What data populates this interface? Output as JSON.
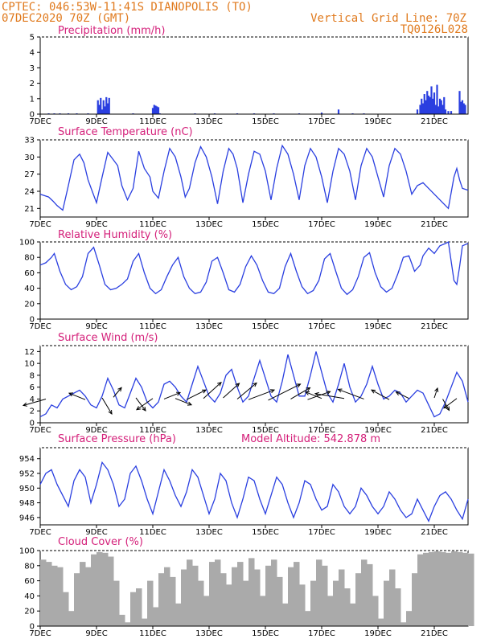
{
  "header": {
    "line1_left": "CPTEC:   046:53W-11:41S   DIANOPOLIS (TO)",
    "line2_left": "07DEC2020 70Z (GMT)",
    "line1_right": "Vertical Grid Line: 70Z",
    "line2_right": "TQ0126L028"
  },
  "colors": {
    "header": "#e07a1e",
    "title": "#d4207a",
    "series": "#2a3fe0",
    "cloud": "#aaaaaa"
  },
  "x_ticks": [
    "7DEC",
    "9DEC",
    "11DEC",
    "13DEC",
    "15DEC",
    "17DEC",
    "19DEC",
    "21DEC"
  ],
  "chart_data": [
    {
      "type": "bar",
      "title": "Precipitation (mm/h)",
      "ylim": [
        0,
        5
      ],
      "yticks": [
        0,
        1,
        2,
        3,
        4,
        5
      ],
      "x_range_days": [
        7,
        22.2
      ],
      "x": [
        7.3,
        7.5,
        7.7,
        8.0,
        8.3,
        8.7,
        9.05,
        9.1,
        9.15,
        9.2,
        9.25,
        9.3,
        9.35,
        9.4,
        9.45,
        10.3,
        11.0,
        11.05,
        11.1,
        11.15,
        11.2,
        11.25,
        12.5,
        13.2,
        14.0,
        14.6,
        15.3,
        16.2,
        17.0,
        17.6,
        18.1,
        18.5,
        20.4,
        20.5,
        20.55,
        20.6,
        20.65,
        20.7,
        20.75,
        20.8,
        20.85,
        20.9,
        20.95,
        21.0,
        21.05,
        21.1,
        21.15,
        21.2,
        21.25,
        21.3,
        21.35,
        21.4,
        21.5,
        21.6,
        21.9,
        21.95,
        22.0,
        22.05,
        22.1
      ],
      "values": [
        0.05,
        0.05,
        0.05,
        0.05,
        0.05,
        0.05,
        0.9,
        0.6,
        1.05,
        0.3,
        0.9,
        0.5,
        1.1,
        0.7,
        1.05,
        0.05,
        0.4,
        0.6,
        0.55,
        0.5,
        0.45,
        0.05,
        0.05,
        0.05,
        0.05,
        0.05,
        0.05,
        0.05,
        0.1,
        0.3,
        0.05,
        0.05,
        0.3,
        0.6,
        1.0,
        0.7,
        1.3,
        0.9,
        1.5,
        1.2,
        1.1,
        1.8,
        1.0,
        1.4,
        0.6,
        1.9,
        0.5,
        1.0,
        0.9,
        0.6,
        1.1,
        0.3,
        0.2,
        0.2,
        1.5,
        0.8,
        0.9,
        0.7,
        0.6
      ]
    },
    {
      "type": "line",
      "title": "Surface Temperature (nC)",
      "ylim": [
        19.5,
        33
      ],
      "yticks": [
        21,
        24,
        27,
        30,
        33
      ],
      "x_range_days": [
        7,
        22.2
      ],
      "x": [
        7.0,
        7.3,
        7.45,
        7.6,
        7.8,
        8.0,
        8.2,
        8.4,
        8.55,
        8.7,
        8.85,
        9.0,
        9.2,
        9.4,
        9.6,
        9.75,
        9.9,
        10.1,
        10.3,
        10.5,
        10.7,
        10.9,
        11.0,
        11.2,
        11.4,
        11.6,
        11.8,
        12.0,
        12.15,
        12.3,
        12.5,
        12.7,
        12.9,
        13.1,
        13.3,
        13.5,
        13.7,
        13.85,
        14.0,
        14.2,
        14.4,
        14.6,
        14.8,
        15.0,
        15.2,
        15.4,
        15.6,
        15.8,
        16.0,
        16.2,
        16.4,
        16.6,
        16.8,
        17.0,
        17.2,
        17.4,
        17.6,
        17.8,
        18.0,
        18.2,
        18.4,
        18.6,
        18.8,
        19.0,
        19.2,
        19.4,
        19.6,
        19.8,
        20.0,
        20.2,
        20.4,
        20.6,
        20.8,
        21.0,
        21.2,
        21.4,
        21.5,
        21.7,
        21.8,
        21.9,
        22.0,
        22.2
      ],
      "series": [
        {
          "values": [
            23.5,
            23.0,
            22.3,
            21.5,
            20.7,
            25.0,
            29.5,
            30.5,
            29.0,
            26.0,
            24.0,
            22.0,
            26.5,
            30.8,
            29.5,
            28.5,
            25.0,
            22.5,
            24.5,
            31.0,
            28.0,
            26.5,
            24.0,
            22.8,
            27.5,
            31.5,
            30.0,
            26.5,
            23.0,
            24.5,
            29.0,
            31.8,
            30.0,
            26.5,
            21.8,
            27.5,
            31.5,
            30.5,
            28.0,
            22.0,
            27.0,
            31.0,
            30.5,
            27.5,
            22.5,
            28.0,
            32.0,
            30.5,
            27.0,
            22.5,
            28.5,
            31.5,
            30.0,
            26.5,
            22.0,
            27.5,
            31.5,
            30.5,
            27.5,
            22.5,
            28.5,
            31.5,
            30.0,
            26.5,
            23.0,
            28.5,
            31.5,
            30.5,
            27.5,
            23.5,
            25.0,
            25.5,
            24.5,
            23.5,
            22.5,
            21.5,
            21.0,
            26.5,
            28.0,
            26.0,
            24.5,
            24.2
          ]
        }
      ]
    },
    {
      "type": "line",
      "title": "Relative Humidity (%)",
      "ylim": [
        0,
        100
      ],
      "yticks": [
        0,
        20,
        40,
        60,
        80,
        100
      ],
      "x_range_days": [
        7,
        22.2
      ],
      "x": [
        7.0,
        7.2,
        7.4,
        7.5,
        7.7,
        7.9,
        8.1,
        8.3,
        8.5,
        8.7,
        8.9,
        9.1,
        9.3,
        9.5,
        9.7,
        9.9,
        10.1,
        10.3,
        10.5,
        10.7,
        10.9,
        11.1,
        11.3,
        11.5,
        11.7,
        11.9,
        12.1,
        12.3,
        12.5,
        12.7,
        12.9,
        13.1,
        13.3,
        13.5,
        13.7,
        13.9,
        14.1,
        14.3,
        14.5,
        14.7,
        14.9,
        15.1,
        15.3,
        15.5,
        15.7,
        15.9,
        16.1,
        16.3,
        16.5,
        16.7,
        16.9,
        17.1,
        17.3,
        17.5,
        17.7,
        17.9,
        18.1,
        18.3,
        18.5,
        18.7,
        18.9,
        19.1,
        19.3,
        19.5,
        19.7,
        19.9,
        20.1,
        20.3,
        20.5,
        20.6,
        20.8,
        21.0,
        21.2,
        21.4,
        21.5,
        21.7,
        21.8,
        21.9,
        22.0,
        22.2
      ],
      "series": [
        {
          "values": [
            70,
            73,
            80,
            85,
            62,
            45,
            38,
            42,
            55,
            85,
            93,
            70,
            45,
            38,
            40,
            45,
            52,
            75,
            85,
            60,
            40,
            33,
            38,
            55,
            70,
            80,
            55,
            40,
            33,
            35,
            48,
            75,
            80,
            60,
            38,
            35,
            45,
            68,
            82,
            70,
            50,
            35,
            33,
            40,
            68,
            85,
            62,
            42,
            33,
            37,
            50,
            78,
            85,
            62,
            40,
            32,
            38,
            55,
            80,
            86,
            60,
            42,
            35,
            40,
            58,
            80,
            82,
            62,
            70,
            82,
            92,
            85,
            95,
            98,
            100,
            50,
            45,
            68,
            95,
            98
          ]
        }
      ]
    },
    {
      "type": "line",
      "title": "Surface Wind (m/s)",
      "ylim": [
        0,
        13
      ],
      "yticks": [
        0,
        2,
        4,
        6,
        8,
        10,
        12
      ],
      "x_range_days": [
        7,
        22.2
      ],
      "x": [
        7.0,
        7.2,
        7.4,
        7.6,
        7.8,
        8.0,
        8.2,
        8.4,
        8.6,
        8.8,
        9.0,
        9.2,
        9.4,
        9.6,
        9.8,
        10.0,
        10.2,
        10.4,
        10.6,
        10.8,
        11.0,
        11.2,
        11.4,
        11.6,
        11.8,
        12.0,
        12.2,
        12.4,
        12.6,
        12.8,
        13.0,
        13.2,
        13.4,
        13.6,
        13.8,
        14.0,
        14.2,
        14.4,
        14.6,
        14.8,
        15.0,
        15.2,
        15.4,
        15.6,
        15.8,
        16.0,
        16.2,
        16.4,
        16.6,
        16.8,
        17.0,
        17.2,
        17.4,
        17.6,
        17.8,
        18.0,
        18.2,
        18.4,
        18.6,
        18.8,
        19.0,
        19.2,
        19.4,
        19.6,
        19.8,
        20.0,
        20.2,
        20.4,
        20.6,
        20.8,
        21.0,
        21.2,
        21.4,
        21.6,
        21.8,
        22.0,
        22.2
      ],
      "series": [
        {
          "values": [
            1.0,
            1.5,
            3.0,
            2.5,
            4.0,
            4.5,
            5.0,
            5.5,
            4.5,
            3.0,
            2.5,
            4.5,
            7.5,
            5.5,
            3.0,
            2.5,
            5.0,
            7.5,
            6.0,
            3.5,
            2.5,
            3.5,
            6.5,
            7.0,
            6.0,
            4.5,
            3.5,
            6.5,
            9.5,
            7.0,
            4.5,
            3.5,
            5.0,
            8.0,
            9.0,
            6.0,
            3.5,
            4.5,
            7.5,
            10.5,
            7.5,
            4.5,
            3.5,
            7.0,
            11.5,
            8.0,
            4.5,
            4.5,
            8.0,
            12.0,
            8.5,
            5.0,
            3.5,
            6.5,
            10.0,
            6.0,
            3.5,
            4.5,
            6.5,
            9.5,
            6.5,
            4.0,
            4.5,
            5.5,
            5.0,
            3.5,
            4.5,
            5.5,
            5.0,
            3.0,
            1.0,
            1.5,
            3.5,
            6.0,
            8.5,
            7.0,
            3.5
          ]
        }
      ],
      "arrows": [
        [
          7.2,
          4,
          -0.7,
          -0.2
        ],
        [
          8.6,
          3.9,
          -0.5,
          0.2
        ],
        [
          9.2,
          4.2,
          0.3,
          -0.5
        ],
        [
          9.6,
          4.3,
          0.25,
          0.3
        ],
        [
          10.4,
          4.2,
          0.3,
          -0.4
        ],
        [
          11.0,
          4.1,
          -0.5,
          -0.35
        ],
        [
          11.4,
          4.0,
          0.5,
          0.2
        ],
        [
          11.8,
          4.1,
          0.5,
          -0.2
        ],
        [
          12.2,
          3.9,
          0.6,
          0.3
        ],
        [
          12.8,
          4.1,
          0.55,
          0.5
        ],
        [
          13.5,
          4.2,
          0.5,
          0.45
        ],
        [
          14.0,
          4.0,
          0.6,
          0.5
        ],
        [
          14.4,
          3.9,
          0.8,
          0.3
        ],
        [
          15.1,
          3.8,
          1.0,
          0.5
        ],
        [
          15.9,
          4.0,
          0.6,
          0.35
        ],
        [
          16.5,
          3.9,
          0.7,
          0.25
        ],
        [
          17.0,
          4.1,
          -0.5,
          0.2
        ],
        [
          17.8,
          4.1,
          -0.9,
          0.15
        ],
        [
          18.5,
          4.0,
          -0.8,
          0.3
        ],
        [
          19.4,
          3.9,
          -0.55,
          0.3
        ],
        [
          20.1,
          4.1,
          -0.4,
          0.2
        ],
        [
          21.0,
          4.2,
          0.1,
          0.3
        ],
        [
          21.3,
          4.0,
          0.2,
          -0.35
        ],
        [
          21.8,
          4.1,
          -0.4,
          -0.3
        ]
      ]
    },
    {
      "type": "line",
      "title": "Surface Pressure (hPa)",
      "annotation": "Model Altitude: 542.878  m",
      "ylim": [
        945,
        955.5
      ],
      "yticks": [
        946,
        948,
        950,
        952,
        954
      ],
      "x_range_days": [
        7,
        22.2
      ],
      "x": [
        7.0,
        7.2,
        7.4,
        7.6,
        7.8,
        8.0,
        8.2,
        8.4,
        8.6,
        8.8,
        9.0,
        9.2,
        9.4,
        9.6,
        9.8,
        10.0,
        10.2,
        10.4,
        10.6,
        10.8,
        11.0,
        11.2,
        11.4,
        11.6,
        11.8,
        12.0,
        12.2,
        12.4,
        12.6,
        12.8,
        13.0,
        13.2,
        13.4,
        13.6,
        13.8,
        14.0,
        14.2,
        14.4,
        14.6,
        14.8,
        15.0,
        15.2,
        15.4,
        15.6,
        15.8,
        16.0,
        16.2,
        16.4,
        16.6,
        16.8,
        17.0,
        17.2,
        17.4,
        17.6,
        17.8,
        18.0,
        18.2,
        18.4,
        18.6,
        18.8,
        19.0,
        19.2,
        19.4,
        19.6,
        19.8,
        20.0,
        20.2,
        20.4,
        20.6,
        20.8,
        21.0,
        21.2,
        21.4,
        21.6,
        21.8,
        22.0,
        22.2
      ],
      "series": [
        {
          "values": [
            950.5,
            952.0,
            952.5,
            950.5,
            949.0,
            947.5,
            951.0,
            952.5,
            951.5,
            948.0,
            950.5,
            953.5,
            952.5,
            950.5,
            947.5,
            948.5,
            952.0,
            953.0,
            951.0,
            948.5,
            946.5,
            949.5,
            952.5,
            951.0,
            949.0,
            947.5,
            949.5,
            952.5,
            951.5,
            949.0,
            946.5,
            948.5,
            952.0,
            951.0,
            948.0,
            946.0,
            948.5,
            951.5,
            951.0,
            948.5,
            946.5,
            949.0,
            951.5,
            950.5,
            948.0,
            946.0,
            948.0,
            951.0,
            950.5,
            948.5,
            947.0,
            947.5,
            950.5,
            949.5,
            947.5,
            946.5,
            947.5,
            950.0,
            949.0,
            947.5,
            946.5,
            947.5,
            949.5,
            948.5,
            947.0,
            946.0,
            946.5,
            948.5,
            947.0,
            945.5,
            947.5,
            949.0,
            949.5,
            948.5,
            947.0,
            945.8,
            948.5
          ]
        }
      ]
    },
    {
      "type": "bar",
      "title": "Cloud Cover (%)",
      "ylim": [
        0,
        100
      ],
      "yticks": [
        0,
        20,
        40,
        60,
        80,
        100
      ],
      "x_range_days": [
        7,
        22.2
      ],
      "x": [
        7.0,
        7.2,
        7.4,
        7.6,
        7.8,
        8.0,
        8.2,
        8.4,
        8.6,
        8.8,
        9.0,
        9.2,
        9.4,
        9.6,
        9.8,
        10.0,
        10.2,
        10.4,
        10.6,
        10.8,
        11.0,
        11.2,
        11.4,
        11.6,
        11.8,
        12.0,
        12.2,
        12.4,
        12.6,
        12.8,
        13.0,
        13.2,
        13.4,
        13.6,
        13.8,
        14.0,
        14.2,
        14.4,
        14.6,
        14.8,
        15.0,
        15.2,
        15.4,
        15.6,
        15.8,
        16.0,
        16.2,
        16.4,
        16.6,
        16.8,
        17.0,
        17.2,
        17.4,
        17.6,
        17.8,
        18.0,
        18.2,
        18.4,
        18.6,
        18.8,
        19.0,
        19.2,
        19.4,
        19.6,
        19.8,
        20.0,
        20.2,
        20.4,
        20.6,
        20.8,
        21.0,
        21.2,
        21.4,
        21.6,
        21.8,
        22.0,
        22.2
      ],
      "values": [
        88,
        85,
        80,
        78,
        45,
        20,
        70,
        85,
        78,
        95,
        98,
        97,
        92,
        60,
        15,
        5,
        45,
        50,
        10,
        60,
        25,
        70,
        78,
        65,
        30,
        75,
        88,
        80,
        60,
        40,
        85,
        88,
        70,
        55,
        78,
        85,
        60,
        90,
        75,
        40,
        80,
        88,
        65,
        30,
        78,
        85,
        55,
        20,
        60,
        88,
        80,
        40,
        60,
        75,
        50,
        30,
        70,
        88,
        82,
        40,
        10,
        60,
        75,
        50,
        5,
        20,
        70,
        95,
        97,
        98,
        99,
        98,
        97,
        99,
        98,
        97,
        96
      ]
    }
  ]
}
